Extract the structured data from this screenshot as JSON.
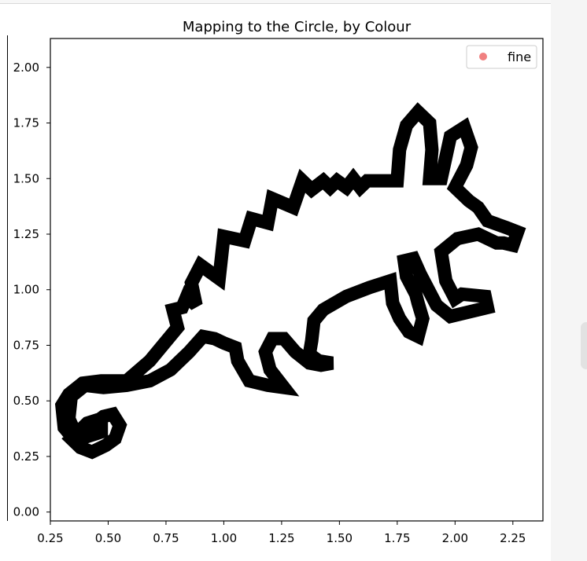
{
  "chart_data": {
    "type": "line",
    "title": "Mapping to the Circle, by Colour",
    "xlabel": "",
    "ylabel": "",
    "xlim": [
      0.25,
      2.38
    ],
    "ylim": [
      -0.04,
      2.13
    ],
    "xticks": [
      0.25,
      0.5,
      0.75,
      1.0,
      1.25,
      1.5,
      1.75,
      2.0,
      2.25
    ],
    "xtick_labels": [
      "0.25",
      "0.50",
      "0.75",
      "1.00",
      "1.25",
      "1.50",
      "1.75",
      "2.00",
      "2.25"
    ],
    "yticks": [
      0.0,
      0.25,
      0.5,
      0.75,
      1.0,
      1.25,
      1.5,
      1.75,
      2.0
    ],
    "ytick_labels": [
      "0.00",
      "0.25",
      "0.50",
      "0.75",
      "1.00",
      "1.25",
      "1.50",
      "1.75",
      "2.00"
    ],
    "grid": false,
    "legend": {
      "placement": "top-right",
      "entries": [
        {
          "label": "fine",
          "color": "#f08080"
        }
      ]
    },
    "series": [
      {
        "color": "#000000",
        "points": [
          [
            0.58,
            0.59
          ],
          [
            0.68,
            0.68
          ],
          [
            0.8,
            0.83
          ],
          [
            0.78,
            0.91
          ],
          [
            0.82,
            0.92
          ],
          [
            0.84,
            0.97
          ],
          [
            0.88,
            0.93
          ],
          [
            0.86,
            1.03
          ],
          [
            0.9,
            1.11
          ],
          [
            0.98,
            1.05
          ],
          [
            1.0,
            1.24
          ],
          [
            1.09,
            1.22
          ],
          [
            1.12,
            1.32
          ],
          [
            1.19,
            1.3
          ],
          [
            1.21,
            1.41
          ],
          [
            1.3,
            1.37
          ],
          [
            1.34,
            1.49
          ],
          [
            1.38,
            1.45
          ],
          [
            1.43,
            1.49
          ],
          [
            1.46,
            1.46
          ],
          [
            1.49,
            1.49
          ],
          [
            1.53,
            1.46
          ],
          [
            1.56,
            1.5
          ],
          [
            1.59,
            1.46
          ],
          [
            1.62,
            1.49
          ],
          [
            1.73,
            1.49
          ],
          [
            1.75,
            1.49
          ],
          [
            1.76,
            1.63
          ],
          [
            1.79,
            1.74
          ],
          [
            1.84,
            1.8
          ],
          [
            1.89,
            1.75
          ],
          [
            1.9,
            1.63
          ],
          [
            1.89,
            1.5
          ],
          [
            1.94,
            1.5
          ],
          [
            1.98,
            1.69
          ],
          [
            2.04,
            1.73
          ],
          [
            2.07,
            1.64
          ],
          [
            2.05,
            1.56
          ],
          [
            2.0,
            1.46
          ],
          [
            2.06,
            1.4
          ],
          [
            2.1,
            1.37
          ],
          [
            2.14,
            1.31
          ],
          [
            2.22,
            1.28
          ],
          [
            2.27,
            1.26
          ],
          [
            2.25,
            1.2
          ],
          [
            2.21,
            1.21
          ],
          [
            2.18,
            1.21
          ],
          [
            2.1,
            1.25
          ],
          [
            2.01,
            1.23
          ],
          [
            1.94,
            1.17
          ],
          [
            1.96,
            1.04
          ],
          [
            2.0,
            0.96
          ],
          [
            2.03,
            0.98
          ],
          [
            2.13,
            0.97
          ],
          [
            2.14,
            0.92
          ],
          [
            1.98,
            0.88
          ],
          [
            1.92,
            0.93
          ],
          [
            1.85,
            1.07
          ],
          [
            1.82,
            1.14
          ],
          [
            1.78,
            1.13
          ],
          [
            1.79,
            1.06
          ],
          [
            1.83,
            0.98
          ],
          [
            1.84,
            0.94
          ],
          [
            1.86,
            0.87
          ],
          [
            1.84,
            0.79
          ],
          [
            1.8,
            0.81
          ],
          [
            1.76,
            0.87
          ],
          [
            1.73,
            0.94
          ],
          [
            1.72,
            1.04
          ],
          [
            1.63,
            1.01
          ],
          [
            1.53,
            0.97
          ],
          [
            1.43,
            0.91
          ],
          [
            1.39,
            0.86
          ],
          [
            1.38,
            0.77
          ],
          [
            1.37,
            0.71
          ],
          [
            1.41,
            0.68
          ],
          [
            1.47,
            0.67
          ],
          [
            1.42,
            0.66
          ],
          [
            1.37,
            0.67
          ],
          [
            1.31,
            0.72
          ],
          [
            1.26,
            0.78
          ],
          [
            1.21,
            0.78
          ],
          [
            1.18,
            0.72
          ],
          [
            1.2,
            0.64
          ],
          [
            1.26,
            0.56
          ],
          [
            1.19,
            0.57
          ],
          [
            1.11,
            0.59
          ],
          [
            1.06,
            0.68
          ],
          [
            1.05,
            0.74
          ],
          [
            1.0,
            0.76
          ],
          [
            0.96,
            0.78
          ],
          [
            0.91,
            0.79
          ],
          [
            0.85,
            0.72
          ],
          [
            0.77,
            0.64
          ],
          [
            0.68,
            0.59
          ],
          [
            0.58,
            0.57
          ],
          [
            0.48,
            0.56
          ],
          [
            0.4,
            0.57
          ],
          [
            0.34,
            0.52
          ],
          [
            0.33,
            0.42
          ],
          [
            0.36,
            0.35
          ],
          [
            0.41,
            0.34
          ],
          [
            0.47,
            0.36
          ],
          [
            0.47,
            0.42
          ],
          [
            0.41,
            0.4
          ],
          [
            0.37,
            0.36
          ],
          [
            0.34,
            0.33
          ],
          [
            0.38,
            0.29
          ],
          [
            0.43,
            0.27
          ],
          [
            0.49,
            0.3
          ],
          [
            0.53,
            0.33
          ],
          [
            0.55,
            0.39
          ],
          [
            0.52,
            0.44
          ],
          [
            0.48,
            0.43
          ],
          [
            0.44,
            0.4
          ],
          [
            0.41,
            0.37
          ],
          [
            0.35,
            0.33
          ],
          [
            0.31,
            0.38
          ],
          [
            0.3,
            0.48
          ],
          [
            0.33,
            0.53
          ],
          [
            0.39,
            0.58
          ],
          [
            0.47,
            0.59
          ],
          [
            0.58,
            0.59
          ]
        ]
      }
    ]
  }
}
